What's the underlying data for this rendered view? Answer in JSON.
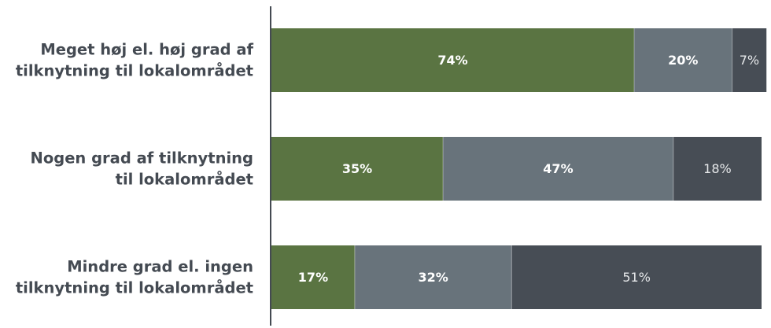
{
  "chart_data": {
    "type": "bar",
    "orientation": "horizontal",
    "stacked": true,
    "categories": [
      [
        "Meget høj el. høj grad af",
        "tilknytning til lokalområdet"
      ],
      [
        "Nogen grad af tilknytning",
        "til lokalområdet"
      ],
      [
        "Mindre grad el. ingen",
        "tilknytning til lokalområdet"
      ]
    ],
    "series": [
      {
        "values": [
          74,
          35,
          17
        ],
        "labels": [
          "74%",
          "35%",
          "17%"
        ],
        "color": "#5a7442",
        "label_weight": "bold"
      },
      {
        "values": [
          20,
          47,
          32
        ],
        "labels": [
          "20%",
          "47%",
          "32%"
        ],
        "color": "#68737b",
        "label_weight": "bold"
      },
      {
        "values": [
          7,
          18,
          51
        ],
        "labels": [
          "7%",
          "18%",
          "51%"
        ],
        "color": "#474d55",
        "label_weight": "normal"
      }
    ],
    "xlim": [
      0,
      100
    ],
    "grid": false,
    "legend": "none"
  }
}
